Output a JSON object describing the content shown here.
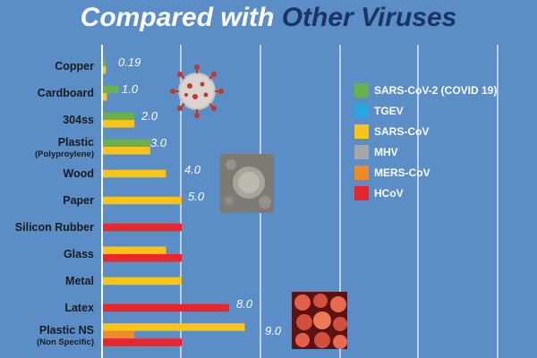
{
  "title": {
    "part1": "Compared with ",
    "part2": "Other Viruses"
  },
  "chart_data": {
    "type": "bar",
    "orientation": "horizontal",
    "title": "Compared with Other Viruses",
    "categories": [
      {
        "label": "Copper",
        "sublabel": ""
      },
      {
        "label": "Cardboard",
        "sublabel": ""
      },
      {
        "label": "304ss",
        "sublabel": ""
      },
      {
        "label": "Plastic",
        "sublabel": "(Polyproylene)"
      },
      {
        "label": "Wood",
        "sublabel": ""
      },
      {
        "label": "Paper",
        "sublabel": ""
      },
      {
        "label": "Silicon Rubber",
        "sublabel": ""
      },
      {
        "label": "Glass",
        "sublabel": ""
      },
      {
        "label": "Metal",
        "sublabel": ""
      },
      {
        "label": "Latex",
        "sublabel": ""
      },
      {
        "label": "Plastic NS",
        "sublabel": "(Non Specific)"
      }
    ],
    "value_labels": [
      "0.19",
      "1.0",
      "2.0",
      "3.0",
      "4.0",
      "5.0",
      "",
      "",
      "",
      "8.0",
      "9.0"
    ],
    "series": [
      {
        "name": "SARS-CoV-2 (COVID 19)",
        "color": "#6ab04c",
        "values": [
          0.19,
          1.0,
          2.0,
          3.0,
          null,
          null,
          null,
          null,
          null,
          null,
          null
        ]
      },
      {
        "name": "TGEV",
        "color": "#29a8e0",
        "values": [
          null,
          null,
          null,
          null,
          null,
          null,
          null,
          null,
          null,
          null,
          null
        ]
      },
      {
        "name": "SARS-CoV",
        "color": "#fcc419",
        "values": [
          0.19,
          0.25,
          2.0,
          3.0,
          4.0,
          5.0,
          null,
          4.0,
          5.0,
          null,
          9.0
        ]
      },
      {
        "name": "MHV",
        "color": "#a6a6a6",
        "values": [
          null,
          null,
          null,
          null,
          null,
          null,
          null,
          null,
          null,
          null,
          null
        ]
      },
      {
        "name": "MERS-CoV",
        "color": "#f08a24",
        "values": [
          null,
          null,
          null,
          null,
          null,
          null,
          null,
          null,
          null,
          null,
          2.0
        ]
      },
      {
        "name": "HCoV",
        "color": "#e8262c",
        "values": [
          null,
          null,
          null,
          null,
          null,
          null,
          5.0,
          5.0,
          null,
          8.0,
          5.0
        ]
      }
    ],
    "xlim": [
      0,
      16
    ],
    "grid": true,
    "legend_position": "right"
  },
  "images": [
    {
      "name": "coronavirus-illustration",
      "kind": "covid"
    },
    {
      "name": "virus-micrograph-gray",
      "kind": "gray"
    },
    {
      "name": "virus-micrograph-red",
      "kind": "red"
    }
  ]
}
